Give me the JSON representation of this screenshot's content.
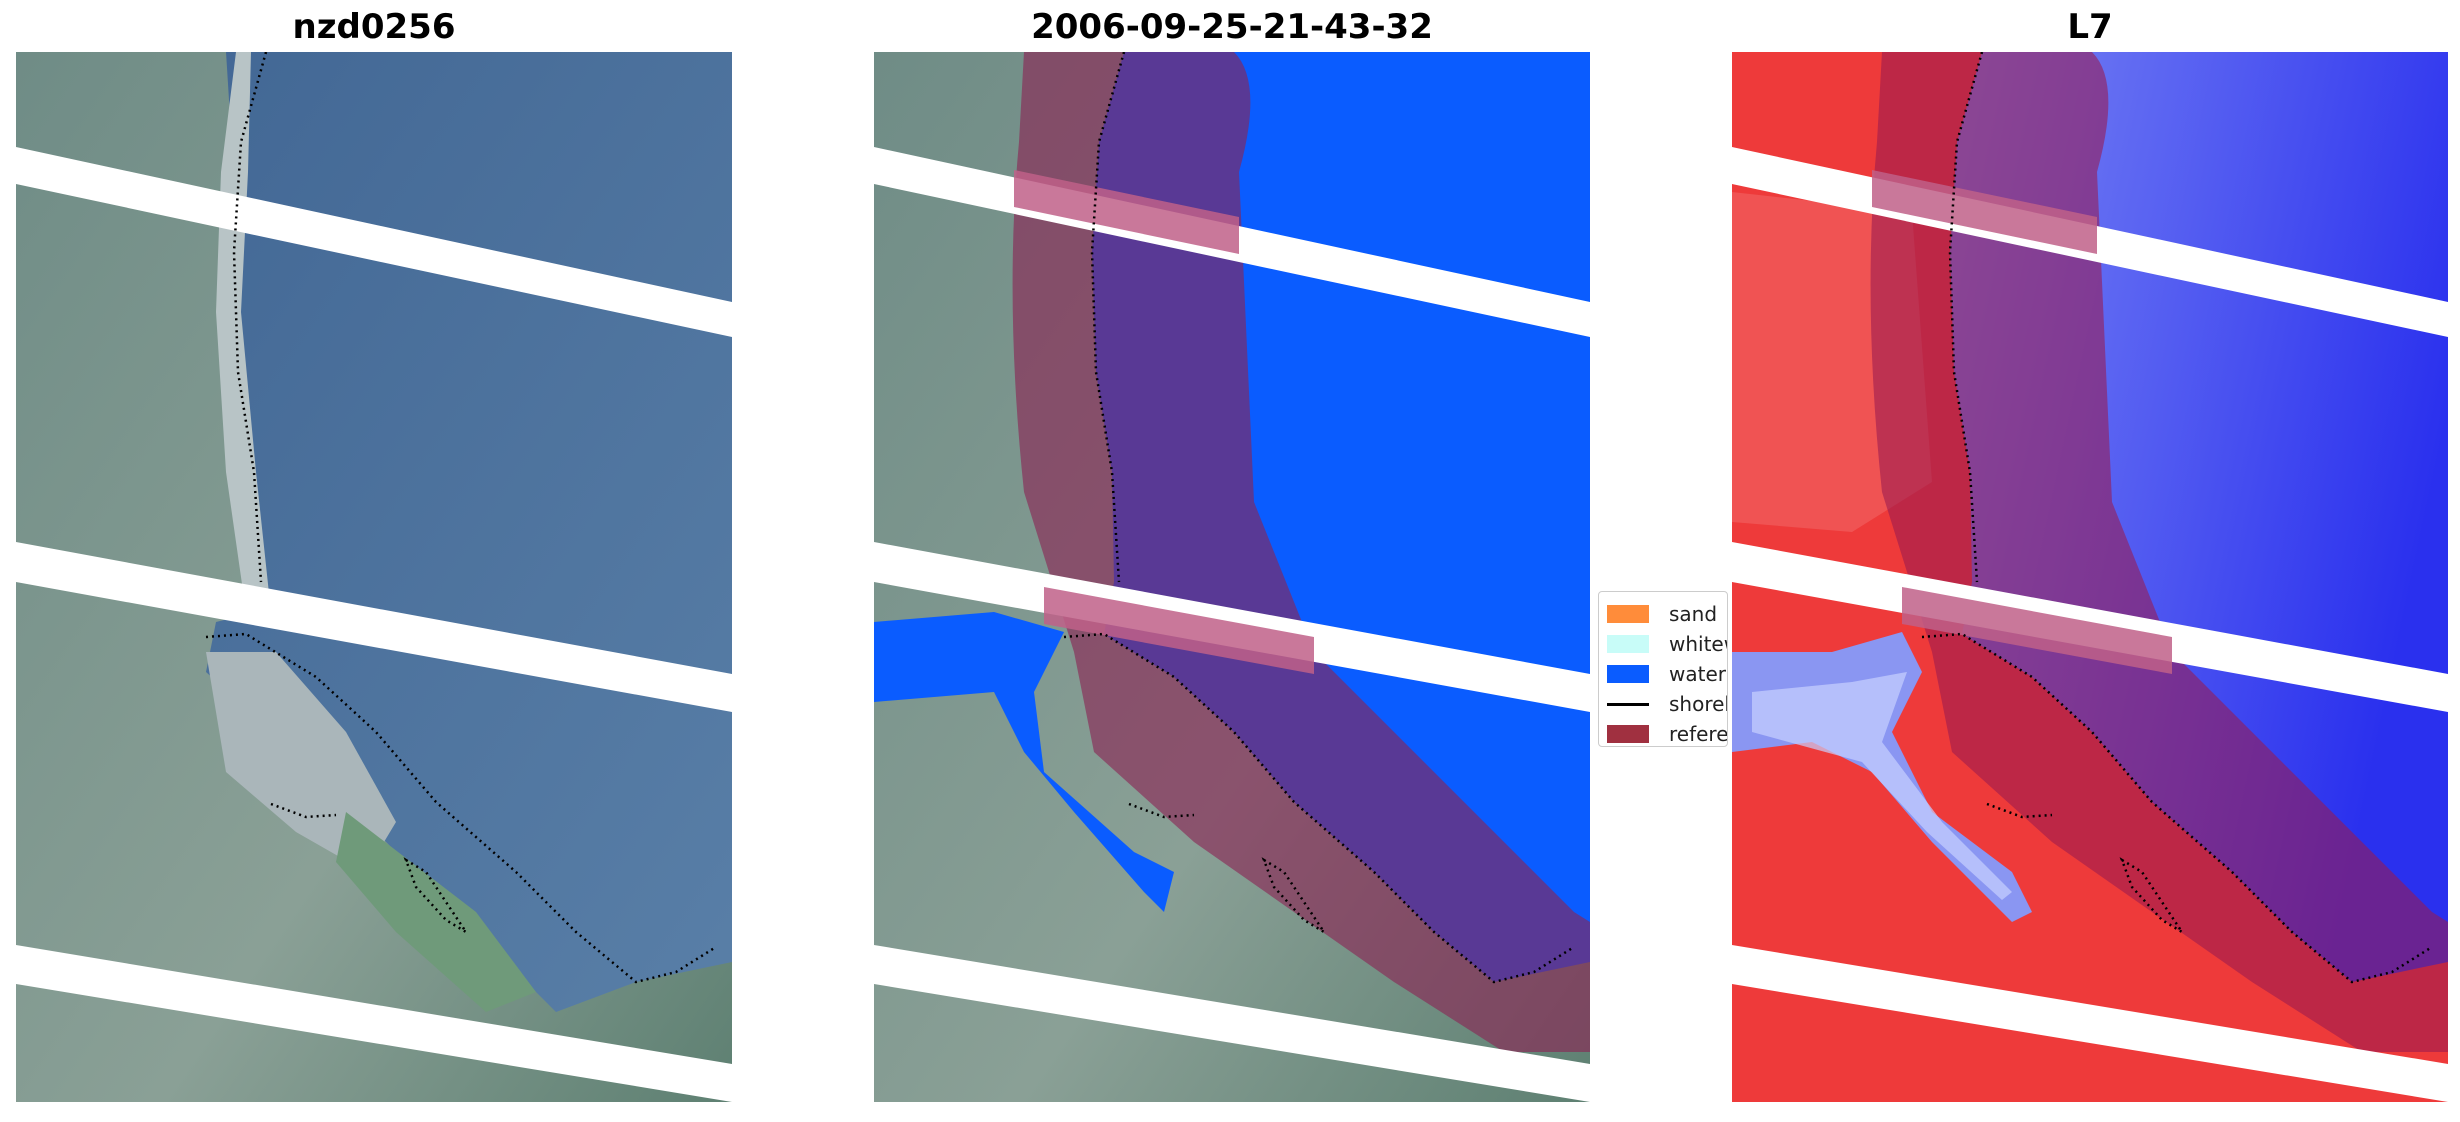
{
  "panels": [
    {
      "title": "nzd0256",
      "mode": "rgb"
    },
    {
      "title": "2006-09-25-21-43-32",
      "mode": "classified"
    },
    {
      "title": "L7",
      "mode": "index"
    }
  ],
  "legend": {
    "items": [
      {
        "label": "sand",
        "color": "#ff8c3a",
        "kind": "patch"
      },
      {
        "label": "whitewater",
        "color": "#c8fcf8",
        "kind": "patch"
      },
      {
        "label": "water",
        "color": "#0a5cff",
        "kind": "patch"
      },
      {
        "label": "shoreline",
        "color": "#000000",
        "kind": "line"
      },
      {
        "label": "reference shoreline buffer",
        "color": "#a03040",
        "kind": "patch"
      }
    ]
  },
  "colors": {
    "water_rgb": "#4a6c98",
    "land_rgb": "#6e8c80",
    "classified_water": "#0a5cff",
    "buffer_overlay": "#8b2454",
    "index_water": "#4a5cf2",
    "index_land": "#ee3a3a",
    "no_data_stripe": "#ffffff"
  }
}
